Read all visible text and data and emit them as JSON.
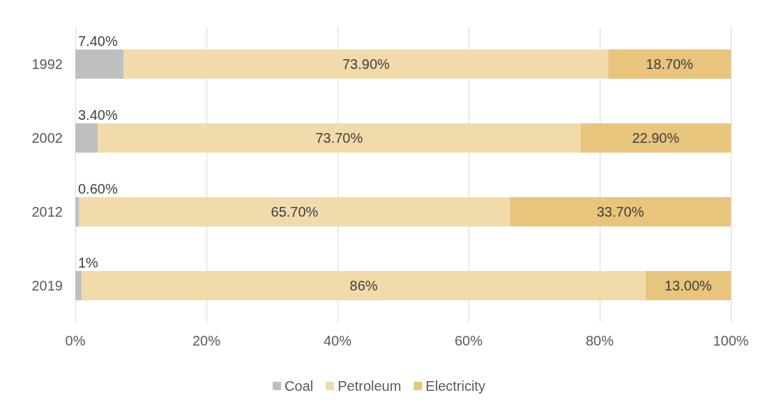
{
  "chart_data": {
    "type": "bar",
    "orientation": "horizontal",
    "stacked": true,
    "categories": [
      "1992",
      "2002",
      "2012",
      "2019"
    ],
    "series": [
      {
        "name": "Coal",
        "color": "#bfbfbf",
        "values": [
          7.4,
          3.4,
          0.6,
          1
        ],
        "value_labels": [
          "7.40%",
          "3.40%",
          "0.60%",
          "1%"
        ]
      },
      {
        "name": "Petroleum",
        "color": "#f2dbab",
        "values": [
          73.9,
          73.7,
          65.7,
          86
        ],
        "value_labels": [
          "73.90%",
          "73.70%",
          "65.70%",
          "86%"
        ]
      },
      {
        "name": "Electricity",
        "color": "#e9c47c",
        "values": [
          18.7,
          22.9,
          33.7,
          13
        ],
        "value_labels": [
          "18.70%",
          "22.90%",
          "33.70%",
          "13.00%"
        ]
      }
    ],
    "xlim": [
      0,
      100
    ],
    "xticks": [
      {
        "value": 0,
        "label": "0%"
      },
      {
        "value": 20,
        "label": "20%"
      },
      {
        "value": 40,
        "label": "40%"
      },
      {
        "value": 60,
        "label": "60%"
      },
      {
        "value": 80,
        "label": "80%"
      },
      {
        "value": 100,
        "label": "100%"
      }
    ],
    "grid": "x",
    "legend": "bottom"
  }
}
